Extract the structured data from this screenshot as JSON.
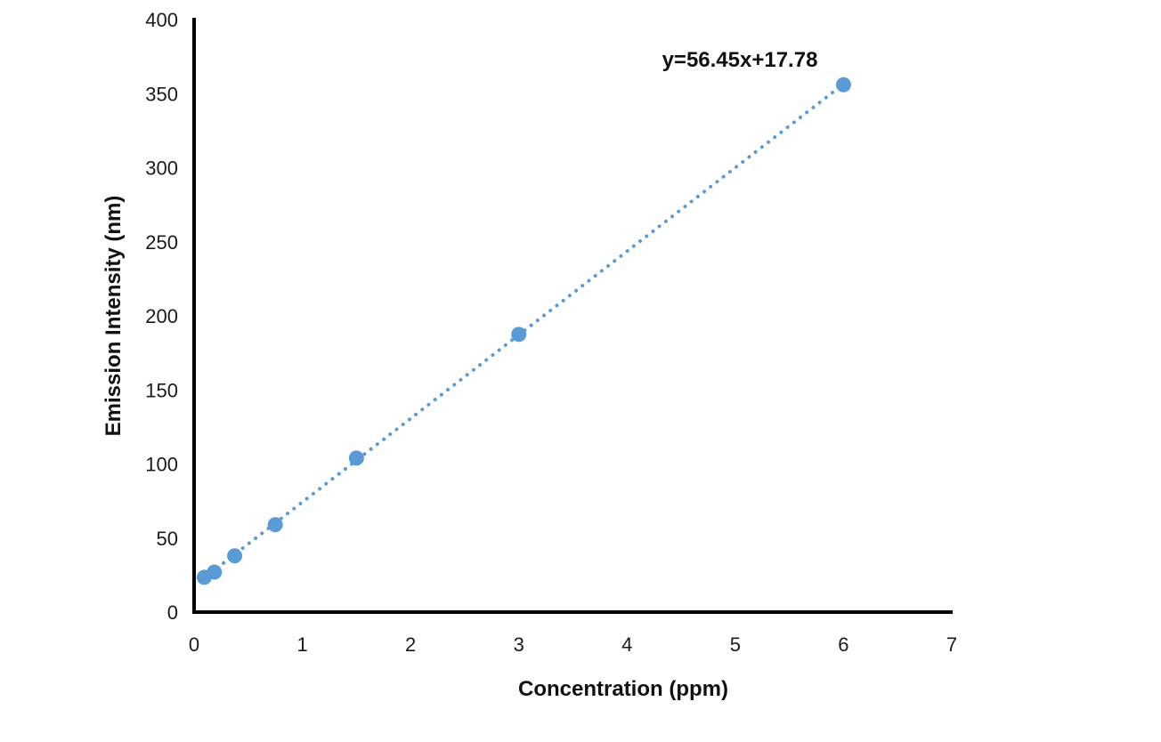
{
  "chart_data": {
    "type": "scatter",
    "title": "",
    "xlabel": "Concentration (ppm)",
    "ylabel": "Emission Intensity (nm)",
    "xlim": [
      0,
      7
    ],
    "ylim": [
      0,
      400
    ],
    "x_ticks": [
      0,
      1,
      2,
      3,
      4,
      5,
      6,
      7
    ],
    "y_ticks": [
      0,
      50,
      100,
      150,
      200,
      250,
      300,
      350,
      400
    ],
    "grid": false,
    "legend": null,
    "series": [
      {
        "name": "Emission Intensity",
        "color": "#5b9bd5",
        "marker": "circle",
        "x": [
          0.094,
          0.1875,
          0.375,
          0.75,
          1.5,
          3,
          6
        ],
        "y": [
          23.5,
          27,
          38,
          59,
          104,
          187.5,
          356
        ]
      }
    ],
    "trendline": {
      "type": "linear",
      "style": "dotted",
      "color": "#5b9bd5",
      "slope": 56.45,
      "intercept": 17.78,
      "x_range": [
        0.094,
        6
      ]
    },
    "annotations": [
      {
        "text": "y=56.45x+17.78",
        "x": 5.1,
        "y": 372
      }
    ]
  },
  "axes": {
    "x_title": "Concentration (ppm)",
    "y_title": "Emission Intensity (nm)"
  },
  "equation_label": "y=56.45x+17.78"
}
